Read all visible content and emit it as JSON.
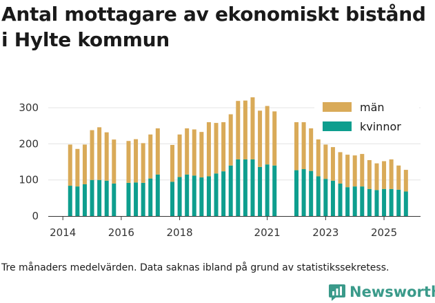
{
  "header": {
    "title": "Antal mottagare av ekonomiskt bistånd i Hylte kommun"
  },
  "chart_data": {
    "type": "bar",
    "stacked": true,
    "title": "Antal mottagare av ekonomiskt bistånd i Hylte kommun",
    "xlabel": "",
    "ylabel": "",
    "ylim": [
      0,
      350
    ],
    "yticks": [
      0,
      100,
      200,
      300
    ],
    "xticks": [
      "2014",
      "2016",
      "2018",
      "2021",
      "2023",
      "2025"
    ],
    "legend_position": "top-right",
    "grid": true,
    "colors": {
      "man": "#d9aa58",
      "kvinnor": "#0e9e8e"
    },
    "series": [
      {
        "name": "kvinnor",
        "x": [
          2014.25,
          2014.5,
          2014.75,
          2015,
          2015.25,
          2015.5,
          2015.75,
          2016.25,
          2016.5,
          2016.75,
          2017,
          2017.25,
          2017.75,
          2018,
          2018.25,
          2018.5,
          2018.75,
          2019,
          2019.25,
          2019.5,
          2019.75,
          2020,
          2020.25,
          2020.5,
          2020.75,
          2021,
          2021.25,
          2022,
          2022.25,
          2022.5,
          2022.75,
          2023,
          2023.25,
          2023.5,
          2023.75,
          2024,
          2024.25,
          2024.5,
          2024.75,
          2025,
          2025.25,
          2025.5,
          2025.75
        ],
        "values": [
          84,
          82,
          88,
          100,
          100,
          98,
          90,
          92,
          93,
          92,
          104,
          115,
          95,
          108,
          115,
          112,
          107,
          110,
          118,
          124,
          140,
          157,
          157,
          157,
          136,
          143,
          140,
          127,
          130,
          125,
          110,
          103,
          98,
          90,
          80,
          82,
          82,
          75,
          72,
          75,
          75,
          73,
          68
        ]
      },
      {
        "name": "män",
        "x": [
          2014.25,
          2014.5,
          2014.75,
          2015,
          2015.25,
          2015.5,
          2015.75,
          2016.25,
          2016.5,
          2016.75,
          2017,
          2017.25,
          2017.75,
          2018,
          2018.25,
          2018.5,
          2018.75,
          2019,
          2019.25,
          2019.5,
          2019.75,
          2020,
          2020.25,
          2020.5,
          2020.75,
          2021,
          2021.25,
          2022,
          2022.25,
          2022.5,
          2022.75,
          2023,
          2023.25,
          2023.5,
          2023.75,
          2024,
          2024.25,
          2024.5,
          2024.75,
          2025,
          2025.25,
          2025.5,
          2025.75
        ],
        "values": [
          114,
          104,
          110,
          138,
          146,
          134,
          122,
          116,
          120,
          110,
          122,
          128,
          102,
          118,
          128,
          128,
          126,
          150,
          140,
          136,
          142,
          162,
          163,
          172,
          156,
          162,
          150,
          133,
          130,
          118,
          108,
          95,
          93,
          87,
          90,
          86,
          90,
          80,
          74,
          77,
          82,
          67,
          60
        ]
      }
    ]
  },
  "legend": {
    "items": [
      {
        "label": "män",
        "color": "#d9aa58"
      },
      {
        "label": "kvinnor",
        "color": "#0e9e8e"
      }
    ]
  },
  "footer": {
    "caption": "Tre månaders medelvärden. Data saknas ibland på grund av statistikssekretess.",
    "brand": "Newsworthy"
  }
}
